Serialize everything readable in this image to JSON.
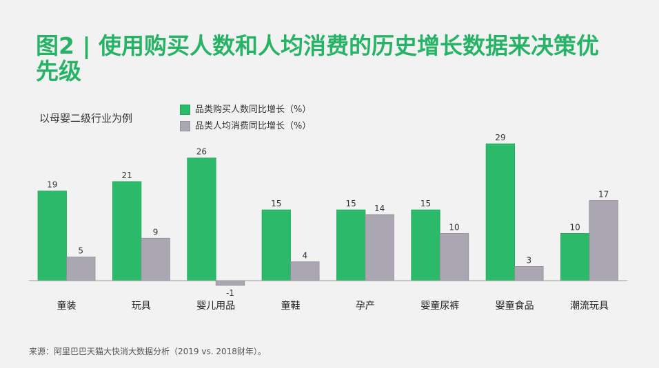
{
  "slide": {
    "title": "图2 | 使用购买人数和人均消费的历史增长数据来决策优先级",
    "subtitle": "以母婴二级行业为例",
    "source": "来源：阿里巴巴天猫大快消大数据分析（2019 vs. 2018财年）。"
  },
  "colors": {
    "background": "#f2f2f2",
    "title": "#27b366"
  },
  "chart_data": {
    "type": "bar",
    "categories": [
      "童装",
      "玩具",
      "婴儿用品",
      "童鞋",
      "孕产",
      "婴童尿裤",
      "婴童食品",
      "潮流玩具"
    ],
    "series": [
      {
        "name": "品类购买人数同比增长（%）",
        "values": [
          19,
          21,
          26,
          15,
          15,
          15,
          29,
          10
        ],
        "color": "#2bb96a"
      },
      {
        "name": "品类人均消费同比增长（%）",
        "values": [
          5,
          9,
          -1,
          4,
          14,
          10,
          3,
          17
        ],
        "color": "#aaa7b2"
      }
    ],
    "legend": "top-left",
    "grid": false,
    "data_labels": true
  }
}
